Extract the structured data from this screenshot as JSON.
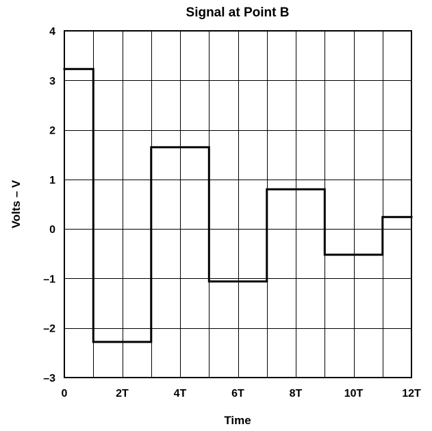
{
  "chart_data": {
    "type": "line",
    "step": true,
    "title": "Signal at Point B",
    "xlabel": "Time",
    "ylabel": "Volts – V",
    "xlim": [
      0,
      12
    ],
    "ylim": [
      -3,
      4
    ],
    "grid": true,
    "x_ticks": [
      {
        "value": 0,
        "label": "0"
      },
      {
        "value": 2,
        "label": "2T"
      },
      {
        "value": 4,
        "label": "4T"
      },
      {
        "value": 6,
        "label": "6T"
      },
      {
        "value": 8,
        "label": "8T"
      },
      {
        "value": 10,
        "label": "10T"
      },
      {
        "value": 12,
        "label": "12T"
      }
    ],
    "y_ticks": [
      {
        "value": 4,
        "label": "4"
      },
      {
        "value": 3,
        "label": "3"
      },
      {
        "value": 2,
        "label": "2"
      },
      {
        "value": 1,
        "label": "1"
      },
      {
        "value": 0,
        "label": "0"
      },
      {
        "value": -1,
        "label": "–1"
      },
      {
        "value": -2,
        "label": "–2"
      },
      {
        "value": -3,
        "label": "–3"
      }
    ],
    "series": [
      {
        "points": [
          {
            "x": 0,
            "y": 3.23
          },
          {
            "x": 1,
            "y": 3.23
          },
          {
            "x": 1,
            "y": -2.28
          },
          {
            "x": 3,
            "y": -2.28
          },
          {
            "x": 3,
            "y": 1.65
          },
          {
            "x": 5,
            "y": 1.65
          },
          {
            "x": 5,
            "y": -1.06
          },
          {
            "x": 7,
            "y": -1.06
          },
          {
            "x": 7,
            "y": 0.8
          },
          {
            "x": 9,
            "y": 0.8
          },
          {
            "x": 9,
            "y": -0.52
          },
          {
            "x": 11,
            "y": -0.52
          },
          {
            "x": 11,
            "y": 0.24
          },
          {
            "x": 12,
            "y": 0.24
          }
        ]
      }
    ]
  }
}
